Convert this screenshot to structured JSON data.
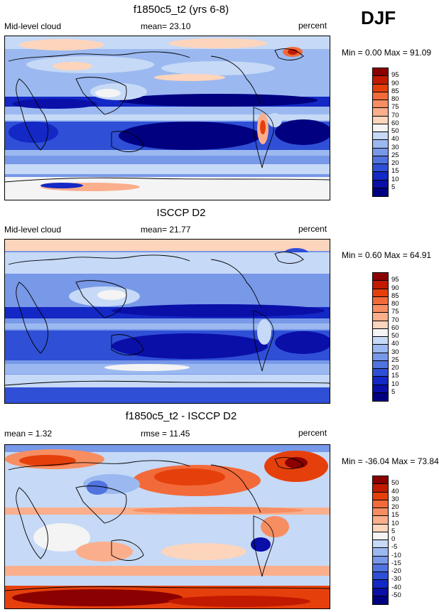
{
  "season": "DJF",
  "panels": [
    {
      "title": "f1850c5_t2 (yrs 6-8)",
      "left_label": "Mid-level cloud",
      "center_label": "mean=  23.10",
      "right_label": "percent",
      "minmax": "Min =   0.00 Max =  91.09",
      "colorbar_labels": [
        "95",
        "90",
        "85",
        "80",
        "75",
        "70",
        "60",
        "50",
        "40",
        "30",
        "25",
        "20",
        "15",
        "10",
        "5"
      ],
      "colorbar_colors": [
        "#8b0000",
        "#c21a00",
        "#e5400c",
        "#f26a3a",
        "#f78e62",
        "#fbae8c",
        "#fdd4bc",
        "#f4f4f4",
        "#c6d9f6",
        "#9bb9f0",
        "#7898e8",
        "#5173e0",
        "#2f4fd6",
        "#1328c4",
        "#0a0fa8",
        "#000080"
      ]
    },
    {
      "title": "ISCCP D2",
      "left_label": "Mid-level cloud",
      "center_label": "mean=  21.77",
      "right_label": "percent",
      "minmax": "Min =   0.60 Max =  64.91",
      "colorbar_labels": [
        "95",
        "90",
        "85",
        "80",
        "75",
        "70",
        "60",
        "50",
        "40",
        "30",
        "25",
        "20",
        "15",
        "10",
        "5"
      ],
      "colorbar_colors": [
        "#8b0000",
        "#c21a00",
        "#e5400c",
        "#f26a3a",
        "#f78e62",
        "#fbae8c",
        "#fdd4bc",
        "#f4f4f4",
        "#c6d9f6",
        "#9bb9f0",
        "#7898e8",
        "#5173e0",
        "#2f4fd6",
        "#1328c4",
        "#0a0fa8",
        "#000080"
      ]
    },
    {
      "title": "f1850c5_t2 - ISCCP D2",
      "left_label": "mean =   1.32",
      "center_label": "rmse =  11.45",
      "right_label": "percent",
      "minmax": "Min = -36.04 Max =  73.84",
      "colorbar_labels": [
        "50",
        "40",
        "30",
        "20",
        "15",
        "10",
        "5",
        "0",
        "-5",
        "-10",
        "-15",
        "-20",
        "-30",
        "-40",
        "-50"
      ],
      "colorbar_colors": [
        "#8b0000",
        "#c21a00",
        "#e5400c",
        "#f26a3a",
        "#f78e62",
        "#fbae8c",
        "#fdd4bc",
        "#f4f4f4",
        "#c6d9f6",
        "#9bb9f0",
        "#7898e8",
        "#5173e0",
        "#2f4fd6",
        "#1328c4",
        "#0a0fa8",
        "#000080"
      ]
    }
  ]
}
